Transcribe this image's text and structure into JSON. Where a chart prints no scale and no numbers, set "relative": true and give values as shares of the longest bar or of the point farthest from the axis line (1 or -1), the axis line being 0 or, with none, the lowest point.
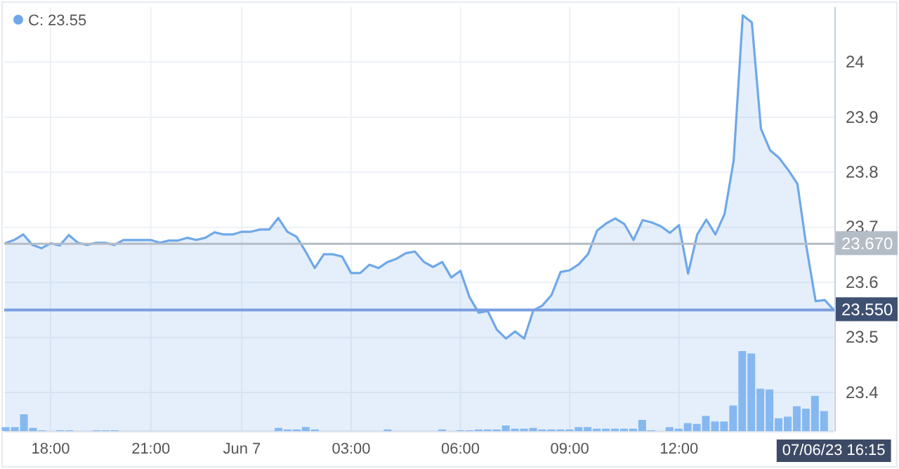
{
  "chart_data": [
    {
      "type": "area",
      "legend": "top left",
      "grid": true,
      "marker": "none",
      "line_style": "solid",
      "categories": [
        null,
        null,
        null,
        null,
        null,
        "18:00",
        null,
        null,
        null,
        null,
        null,
        null,
        null,
        null,
        null,
        null,
        "21:00",
        null,
        null,
        null,
        null,
        null,
        null,
        null,
        null,
        null,
        "Jun 7",
        null,
        null,
        null,
        null,
        null,
        null,
        null,
        null,
        null,
        null,
        null,
        "03:00",
        null,
        null,
        null,
        null,
        null,
        null,
        null,
        null,
        null,
        null,
        null,
        "06:00",
        null,
        null,
        null,
        null,
        null,
        null,
        null,
        null,
        null,
        null,
        null,
        "09:00",
        null,
        null,
        null,
        null,
        null,
        null,
        null,
        null,
        null,
        null,
        null,
        "12:00",
        null,
        null,
        null,
        null,
        null,
        null,
        null,
        null,
        null,
        null,
        null,
        null,
        null,
        null,
        null,
        null,
        "07/06/23 16:15"
      ],
      "series": [
        {
          "name": "C: 23.55",
          "color": "#6fa8e8",
          "values": [
            23.671,
            23.677,
            23.687,
            23.668,
            23.662,
            23.671,
            23.667,
            23.686,
            23.672,
            23.668,
            23.672,
            23.672,
            23.668,
            23.677,
            23.677,
            23.677,
            23.677,
            23.672,
            23.676,
            23.676,
            23.681,
            23.677,
            23.681,
            23.691,
            23.687,
            23.687,
            23.692,
            23.692,
            23.696,
            23.696,
            23.717,
            23.692,
            23.683,
            23.656,
            23.626,
            23.651,
            23.651,
            23.647,
            23.617,
            23.617,
            23.632,
            23.626,
            23.637,
            23.643,
            23.653,
            23.656,
            23.637,
            23.628,
            23.637,
            23.609,
            23.621,
            23.573,
            23.545,
            23.548,
            23.514,
            23.498,
            23.511,
            23.498,
            23.549,
            23.558,
            23.577,
            23.619,
            23.622,
            23.633,
            23.651,
            23.694,
            23.707,
            23.716,
            23.706,
            23.677,
            23.713,
            23.709,
            23.702,
            23.69,
            23.704,
            23.616,
            23.687,
            23.714,
            23.687,
            23.724,
            23.821,
            24.085,
            24.072,
            23.879,
            23.84,
            23.826,
            23.804,
            23.779,
            23.664,
            23.566,
            23.568,
            23.55
          ]
        }
      ],
      "ylim": [
        23.33,
        24.1
      ],
      "yticks": [
        23.4,
        23.5,
        23.6,
        23.7,
        23.8,
        23.9,
        24
      ],
      "ref_lines": [
        {
          "axis": "y",
          "value": 23.67,
          "label": "23.670",
          "color": "#b4bcc6"
        },
        {
          "axis": "y",
          "value": 23.55,
          "label": "23.550",
          "color": "#7a9fe0"
        }
      ]
    },
    {
      "type": "bar",
      "relative": true,
      "categories": [
        null,
        null,
        null,
        null,
        null,
        null,
        null,
        null,
        null,
        null,
        null,
        null,
        null,
        null,
        null,
        null,
        null,
        null,
        null,
        null,
        null,
        null,
        null,
        null,
        null,
        null,
        null,
        null,
        null,
        null,
        null,
        null,
        null,
        null,
        null,
        null,
        null,
        null,
        null,
        null,
        null,
        null,
        null,
        null,
        null,
        null,
        null,
        null,
        null,
        null,
        null,
        null,
        null,
        null,
        null,
        null,
        null,
        null,
        null,
        null,
        null,
        null,
        null,
        null,
        null,
        null,
        null,
        null,
        null,
        null,
        null,
        null,
        null,
        null,
        null,
        null,
        null,
        null,
        null,
        null,
        null,
        null,
        null,
        null,
        null,
        null,
        null,
        null,
        null,
        null,
        null,
        null
      ],
      "color": "#86b8f0",
      "values": [
        0.05,
        0.05,
        0.21,
        0.04,
        0.01,
        null,
        0.01,
        0.01,
        null,
        null,
        0.01,
        0.01,
        0.01,
        null,
        null,
        null,
        null,
        null,
        null,
        null,
        null,
        null,
        null,
        null,
        null,
        null,
        null,
        null,
        null,
        null,
        0.04,
        0.02,
        0.02,
        0.05,
        0.02,
        null,
        null,
        null,
        null,
        null,
        null,
        null,
        0.02,
        null,
        null,
        null,
        null,
        null,
        0.02,
        null,
        0.01,
        0.01,
        0.02,
        0.02,
        0.02,
        0.07,
        0.03,
        0.03,
        0.04,
        0.02,
        0.02,
        0.02,
        0.02,
        0.05,
        0.05,
        0.03,
        0.03,
        0.03,
        0.03,
        0.03,
        0.14,
        0.01,
        null,
        0.05,
        0.03,
        0.1,
        0.09,
        0.19,
        0.12,
        0.12,
        0.32,
        1,
        0.97,
        0.53,
        0.52,
        0.16,
        0.18,
        0.31,
        0.28,
        0.44,
        0.25,
        null
      ]
    }
  ]
}
